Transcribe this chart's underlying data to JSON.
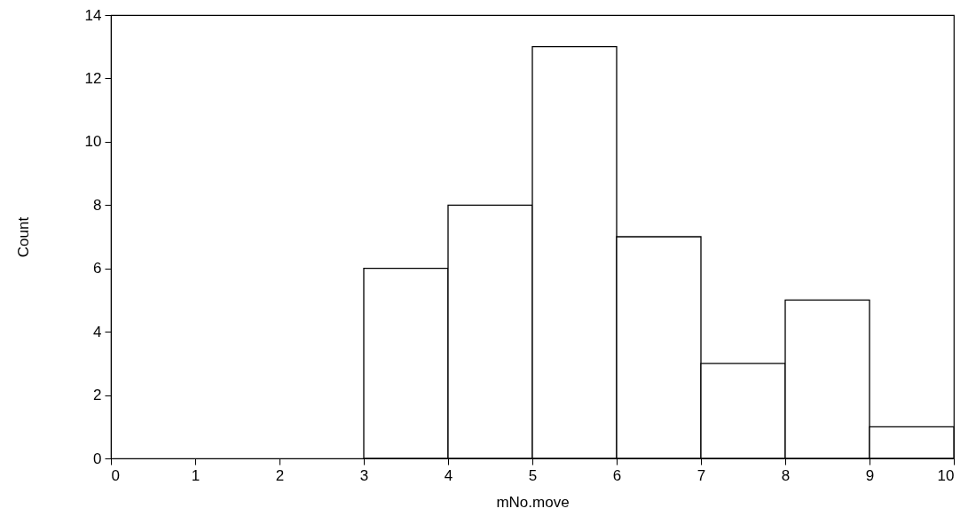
{
  "chart_data": {
    "type": "histogram",
    "xlabel": "mNo.move",
    "ylabel": "Count",
    "bins": [
      3,
      4,
      5,
      6,
      7,
      8,
      9,
      10
    ],
    "values": [
      6,
      8,
      13,
      7,
      3,
      5,
      1
    ],
    "color": "#ffffff",
    "xlim": [
      0,
      10
    ],
    "xticks": [
      0,
      1,
      2,
      3,
      4,
      5,
      6,
      7,
      8,
      9,
      10
    ],
    "ylim": [
      0,
      14
    ],
    "yticks": [
      0,
      2,
      4,
      6,
      8,
      10,
      12,
      14
    ],
    "grid": false
  }
}
